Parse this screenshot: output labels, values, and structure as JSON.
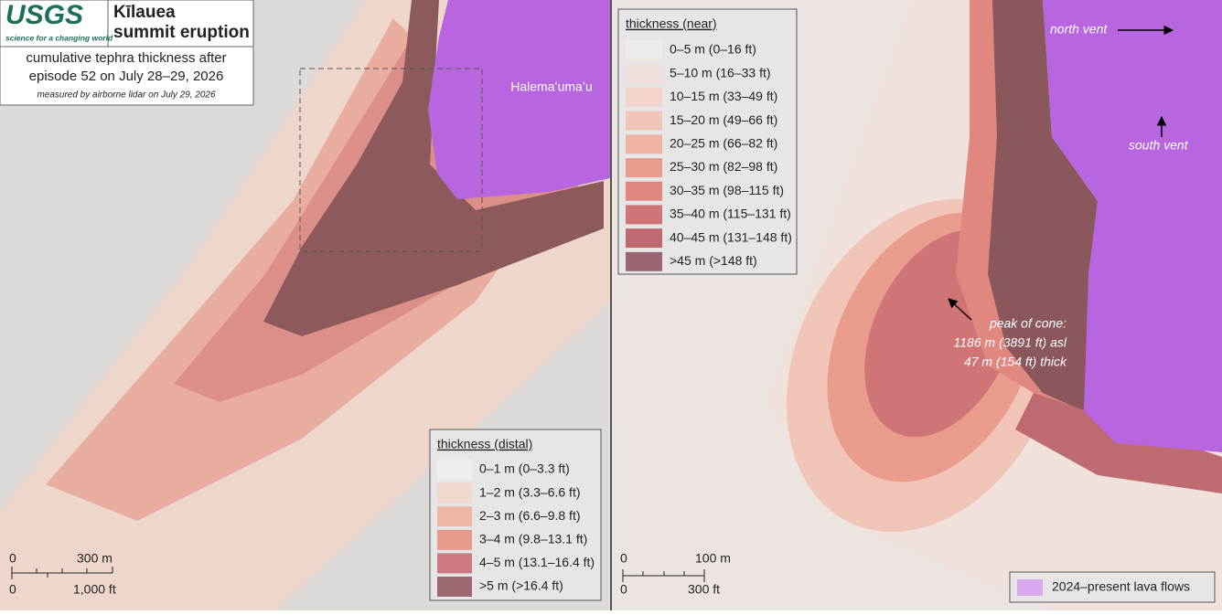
{
  "header": {
    "logo": "USGS",
    "tagline": "science for a changing world",
    "title_lines": [
      "Kīlauea",
      "summit eruption"
    ],
    "subtitle_lines": [
      "cumulative tephra thickness after",
      "episode 52 on July 28–29, 2026"
    ],
    "note": "measured by airborne lidar on July 29, 2026"
  },
  "left_map": {
    "place_label": "Halemaʻumaʻu",
    "legend": {
      "title": "thickness (distal)",
      "items": [
        {
          "label": "0–1 m (0–3.3 ft)",
          "color": "#f2eeec"
        },
        {
          "label": "1–2 m (3.3–6.6 ft)",
          "color": "#f0d8cf"
        },
        {
          "label": "2–3 m (6.6–9.8 ft)",
          "color": "#efb6a3"
        },
        {
          "label": "3–4 m (9.8–13.1 ft)",
          "color": "#e69a8a"
        },
        {
          "label": "4–5 m (13.1–16.4 ft)",
          "color": "#cc7a7f"
        },
        {
          "label": ">5 m (>16.4 ft)",
          "color": "#9b6870"
        }
      ]
    },
    "scale": {
      "metric": [
        "0",
        "300 m"
      ],
      "imperial": [
        "0",
        "1,000 ft"
      ]
    }
  },
  "right_map": {
    "legend": {
      "title": "thickness (near)",
      "items": [
        {
          "label": "0–5 m (0–16 ft)",
          "color": "#eeebea"
        },
        {
          "label": "5–10 m (16–33 ft)",
          "color": "#f1e1dc"
        },
        {
          "label": "10–15 m (33–49 ft)",
          "color": "#f2d4cb"
        },
        {
          "label": "15–20 m (49–66 ft)",
          "color": "#f0c5b8"
        },
        {
          "label": "20–25 m (66–82 ft)",
          "color": "#eeb3a2"
        },
        {
          "label": "25–30 m (82–98 ft)",
          "color": "#e99c8c"
        },
        {
          "label": "30–35 m (98–115 ft)",
          "color": "#e08880"
        },
        {
          "label": "35–40 m (115–131 ft)",
          "color": "#d07577"
        },
        {
          "label": "40–45 m (131–148 ft)",
          "color": "#bd6a71"
        },
        {
          "label": ">45 m (>148 ft)",
          "color": "#9a6570"
        }
      ]
    },
    "annotations": {
      "north_vent": "north vent",
      "south_vent": "south vent",
      "peak": [
        "peak of cone:",
        "1186 m (3891 ft) asl",
        "47 m (154 ft) thick"
      ]
    },
    "scale": {
      "metric": [
        "0",
        "100 m"
      ],
      "imperial": [
        "0",
        "300 ft"
      ]
    },
    "lava_legend": {
      "label": "2024–present lava flows",
      "color": "#d9a8ef"
    }
  }
}
